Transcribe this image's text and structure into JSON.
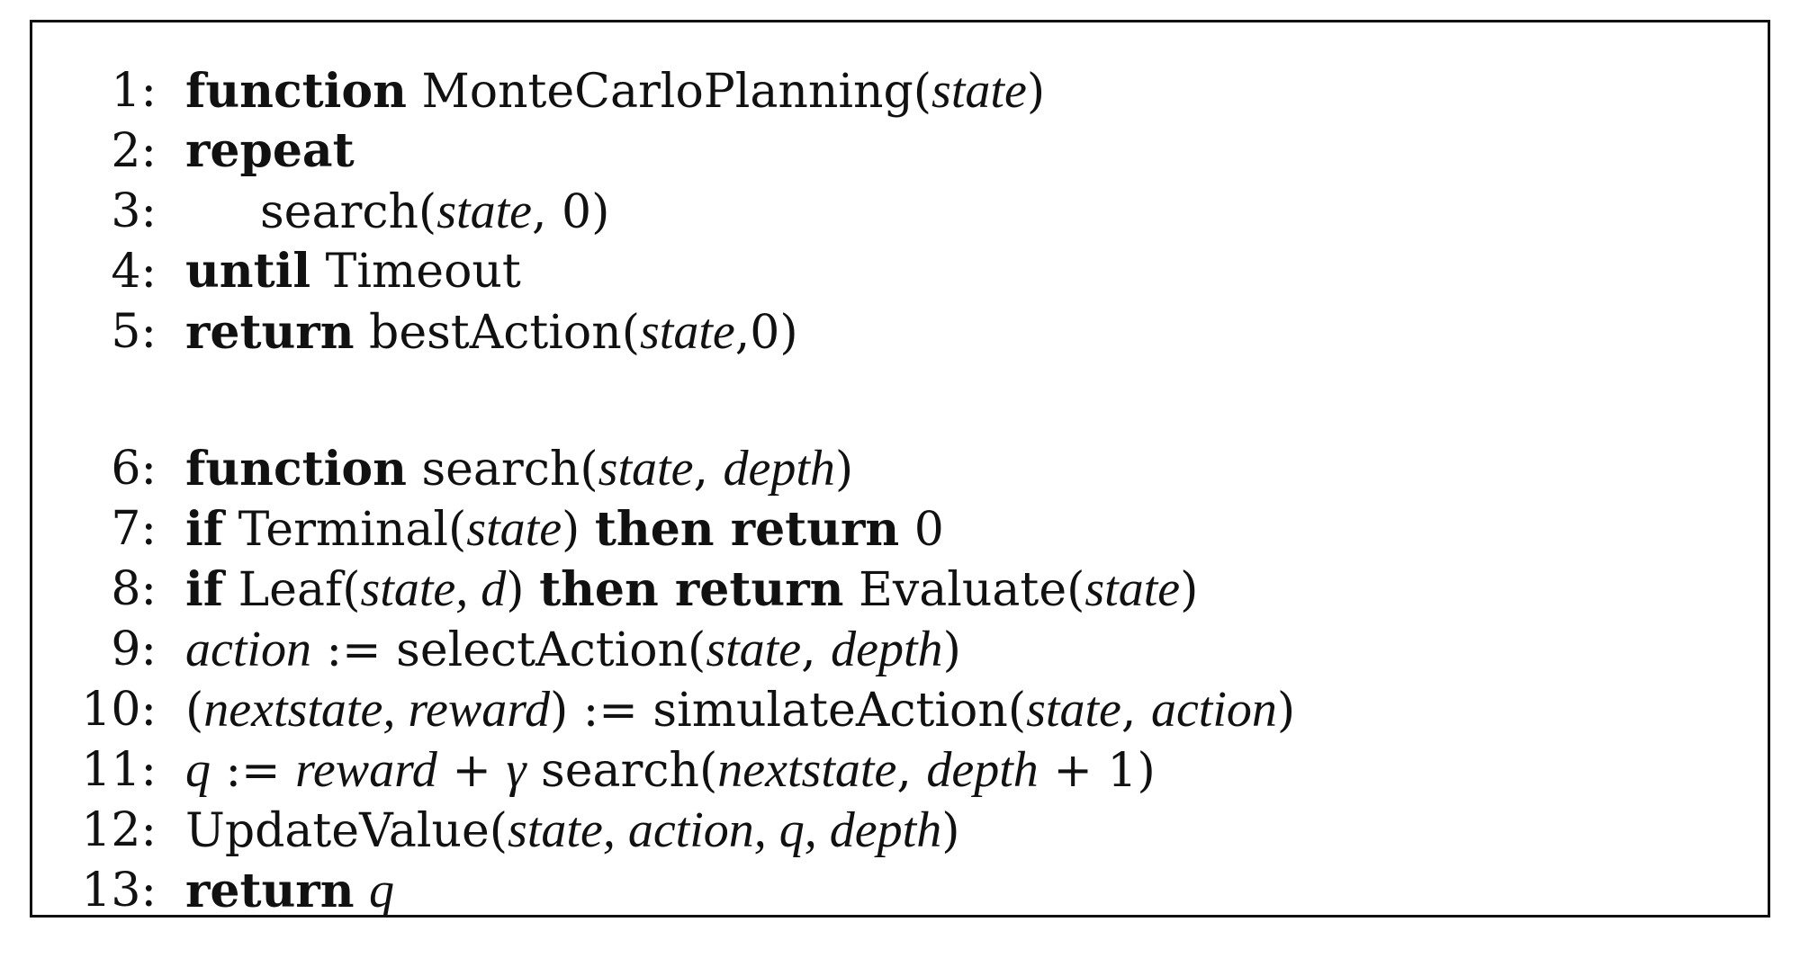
{
  "lines": [
    {
      "num": "1:",
      "parts": [
        {
          "t": "function",
          "s": "kw"
        },
        {
          "t": " MonteCarloPlanning(",
          "s": "fn"
        },
        {
          "t": "state",
          "s": "it"
        },
        {
          "t": ")",
          "s": "fn"
        }
      ]
    },
    {
      "num": "2:",
      "parts": [
        {
          "t": "repeat",
          "s": "kw"
        }
      ]
    },
    {
      "num": "3:",
      "indent": true,
      "parts": [
        {
          "t": "search(",
          "s": "fn"
        },
        {
          "t": "state",
          "s": "it"
        },
        {
          "t": ", 0)",
          "s": "fn"
        }
      ]
    },
    {
      "num": "4:",
      "parts": [
        {
          "t": "until",
          "s": "kw"
        },
        {
          "t": " Timeout",
          "s": "fn"
        }
      ]
    },
    {
      "num": "5:",
      "parts": [
        {
          "t": "return",
          "s": "kw"
        },
        {
          "t": " bestAction(",
          "s": "fn"
        },
        {
          "t": "state",
          "s": "it"
        },
        {
          "t": ",0)",
          "s": "fn"
        }
      ]
    },
    {
      "num": "6:",
      "parts": [
        {
          "t": "function",
          "s": "kw"
        },
        {
          "t": " search(",
          "s": "fn"
        },
        {
          "t": "state",
          "s": "it"
        },
        {
          "t": ", ",
          "s": "fn"
        },
        {
          "t": "depth",
          "s": "it"
        },
        {
          "t": ")",
          "s": "fn"
        }
      ]
    },
    {
      "num": "7:",
      "parts": [
        {
          "t": "if",
          "s": "kw"
        },
        {
          "t": " Terminal(",
          "s": "fn"
        },
        {
          "t": "state",
          "s": "it"
        },
        {
          "t": ") ",
          "s": "fn"
        },
        {
          "t": "then return",
          "s": "kw"
        },
        {
          "t": " 0",
          "s": "fn"
        }
      ]
    },
    {
      "num": "8:",
      "parts": [
        {
          "t": "if",
          "s": "kw"
        },
        {
          "t": " Leaf(",
          "s": "fn"
        },
        {
          "t": "state, d",
          "s": "it"
        },
        {
          "t": ") ",
          "s": "fn"
        },
        {
          "t": "then return",
          "s": "kw"
        },
        {
          "t": " Evaluate(",
          "s": "fn"
        },
        {
          "t": "state",
          "s": "it"
        },
        {
          "t": ")",
          "s": "fn"
        }
      ]
    },
    {
      "num": "9:",
      "parts": [
        {
          "t": "action",
          "s": "it"
        },
        {
          "t": " := selectAction(",
          "s": "fn"
        },
        {
          "t": "state",
          "s": "it"
        },
        {
          "t": ", ",
          "s": "fn"
        },
        {
          "t": "depth",
          "s": "it"
        },
        {
          "t": ")",
          "s": "fn"
        }
      ]
    },
    {
      "num": "10:",
      "parts": [
        {
          "t": "(",
          "s": "fn"
        },
        {
          "t": "nextstate, reward",
          "s": "it"
        },
        {
          "t": ") := simulateAction(",
          "s": "fn"
        },
        {
          "t": "state",
          "s": "it"
        },
        {
          "t": ", ",
          "s": "fn"
        },
        {
          "t": "action",
          "s": "it"
        },
        {
          "t": ")",
          "s": "fn"
        }
      ]
    },
    {
      "num": "11:",
      "parts": [
        {
          "t": "q",
          "s": "it"
        },
        {
          "t": " := ",
          "s": "fn"
        },
        {
          "t": "reward",
          "s": "it"
        },
        {
          "t": " + ",
          "s": "fn"
        },
        {
          "t": "γ",
          "s": "it"
        },
        {
          "t": " search(",
          "s": "fn"
        },
        {
          "t": "nextstate",
          "s": "it"
        },
        {
          "t": ", ",
          "s": "fn"
        },
        {
          "t": "depth",
          "s": "it"
        },
        {
          "t": " + 1)",
          "s": "fn"
        }
      ]
    },
    {
      "num": "12:",
      "parts": [
        {
          "t": "UpdateValue(",
          "s": "fn"
        },
        {
          "t": "state, action, q, depth",
          "s": "it"
        },
        {
          "t": ")",
          "s": "fn"
        }
      ]
    },
    {
      "num": "13:",
      "parts": [
        {
          "t": "return",
          "s": "kw"
        },
        {
          "t": " ",
          "s": "fn"
        },
        {
          "t": "q",
          "s": "it"
        }
      ]
    }
  ]
}
